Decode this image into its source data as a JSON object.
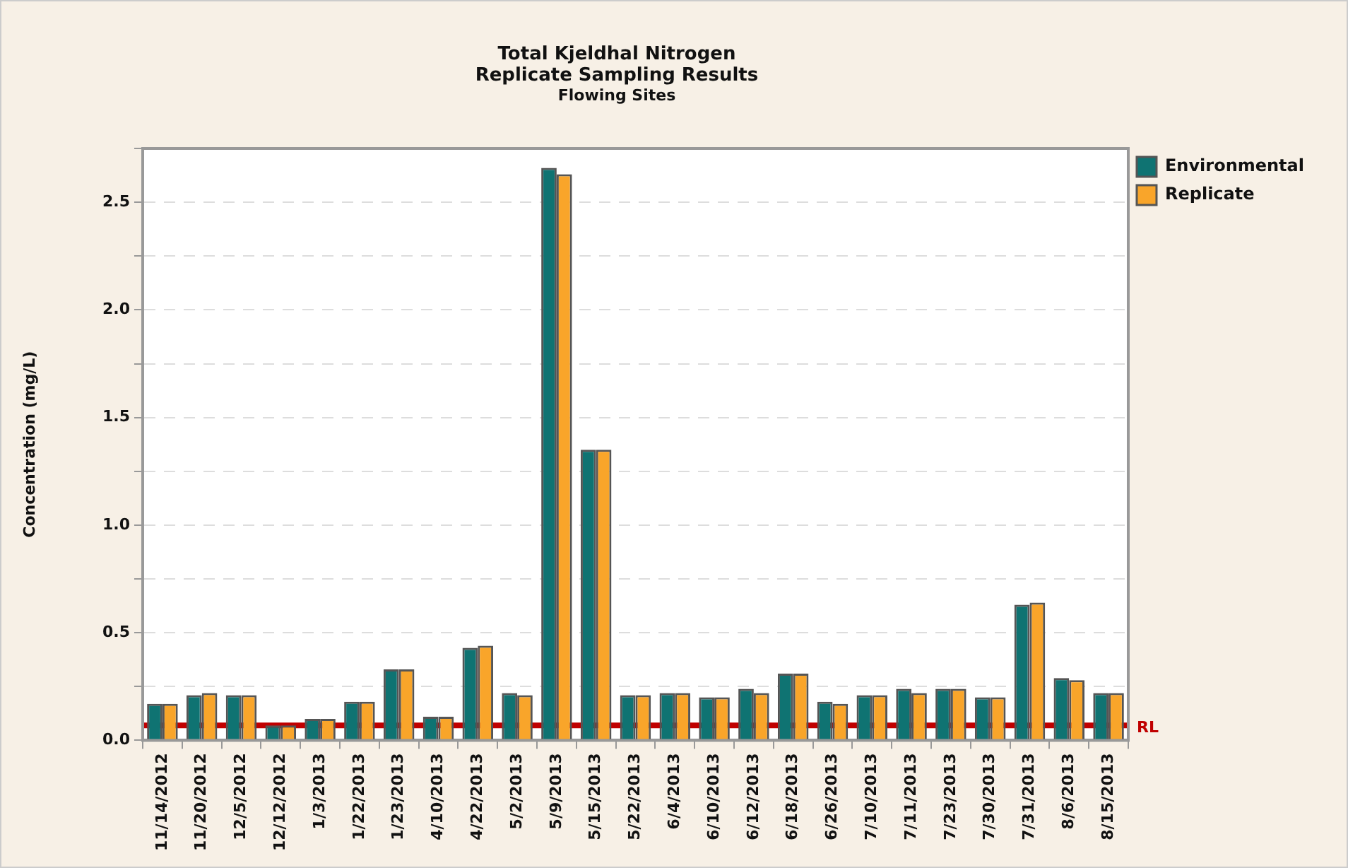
{
  "chart_data": {
    "type": "bar",
    "title": "Total Kjeldhal Nitrogen",
    "subtitle": "Replicate Sampling Results\nFlowing Sites",
    "ylabel": "Concentration (mg/L)",
    "categories": [
      "11/14/2012",
      "11/20/2012",
      "12/5/2012",
      "12/12/2012",
      "1/3/2013",
      "1/22/2013",
      "1/23/2013",
      "4/10/2013",
      "4/22/2013",
      "5/2/2013",
      "5/9/2013",
      "5/15/2013",
      "5/22/2013",
      "6/4/2013",
      "6/10/2013",
      "6/12/2013",
      "6/18/2013",
      "6/26/2013",
      "7/10/2013",
      "7/11/2013",
      "7/23/2013",
      "7/30/2013",
      "7/31/2013",
      "8/6/2013",
      "8/15/2013"
    ],
    "series": [
      {
        "name": "Environmental",
        "color": "#0f7372",
        "values": [
          0.17,
          0.21,
          0.21,
          0.07,
          0.1,
          0.18,
          0.33,
          0.11,
          0.43,
          0.22,
          2.66,
          1.35,
          0.21,
          0.22,
          0.2,
          0.24,
          0.31,
          0.18,
          0.21,
          0.24,
          0.24,
          0.2,
          0.63,
          0.29,
          0.22
        ]
      },
      {
        "name": "Replicate",
        "color": "#f9a52a",
        "values": [
          0.17,
          0.22,
          0.21,
          0.07,
          0.1,
          0.18,
          0.33,
          0.11,
          0.44,
          0.21,
          2.63,
          1.35,
          0.21,
          0.22,
          0.2,
          0.22,
          0.31,
          0.17,
          0.21,
          0.22,
          0.24,
          0.2,
          0.64,
          0.28,
          0.22
        ]
      }
    ],
    "ylim": [
      0,
      2.75
    ],
    "yticks": [
      {
        "value": 0,
        "label": "0.0"
      },
      {
        "value": 0.25,
        "label": null
      },
      {
        "value": 0.5,
        "label": "0.5"
      },
      {
        "value": 0.75,
        "label": null
      },
      {
        "value": 1,
        "label": "1.0"
      },
      {
        "value": 1.25,
        "label": null
      },
      {
        "value": 1.5,
        "label": "1.5"
      },
      {
        "value": 1.75,
        "label": null
      },
      {
        "value": 2,
        "label": "2.0"
      },
      {
        "value": 2.25,
        "label": null
      },
      {
        "value": 2.5,
        "label": "2.5"
      },
      {
        "value": 2.75,
        "label": null
      }
    ],
    "ref_lines": [
      {
        "axis": "y",
        "value": 0.07,
        "label": "RL",
        "color": "#c00000"
      }
    ],
    "grid": "y",
    "legend": "top right"
  }
}
